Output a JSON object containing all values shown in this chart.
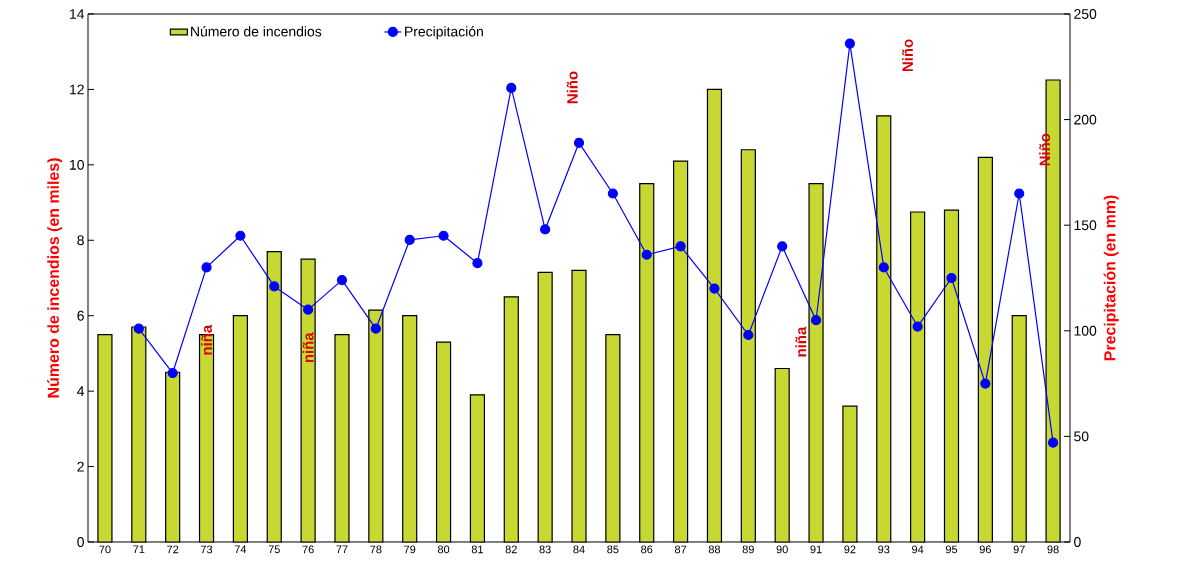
{
  "chart_data": {
    "type": "bar",
    "categories": [
      "70",
      "71",
      "72",
      "73",
      "74",
      "75",
      "76",
      "77",
      "78",
      "79",
      "80",
      "81",
      "82",
      "83",
      "84",
      "85",
      "86",
      "87",
      "88",
      "89",
      "90",
      "91",
      "92",
      "93",
      "94",
      "95",
      "96",
      "97",
      "98"
    ],
    "series": [
      {
        "name": "Número de incendios",
        "color": "#c8d832",
        "values": [
          5.5,
          5.7,
          4.5,
          5.5,
          6.0,
          7.7,
          7.5,
          5.5,
          6.15,
          6.0,
          5.3,
          3.9,
          6.5,
          7.15,
          7.2,
          5.5,
          9.5,
          10.1,
          12.0,
          10.4,
          4.6,
          9.5,
          3.6,
          11.3,
          8.75,
          8.8,
          10.2,
          6.0,
          12.25
        ]
      },
      {
        "name": "Precipitación",
        "type": "line",
        "axis": "y2",
        "color": "#0000ff",
        "marker": "circle",
        "values": [
          null,
          101,
          80,
          130,
          145,
          121,
          110,
          124,
          101,
          143,
          145,
          132,
          215,
          148,
          189,
          165,
          136,
          140,
          120,
          98,
          140,
          105,
          236,
          130,
          102,
          125,
          75,
          165,
          47
        ]
      }
    ],
    "ylabel": "Número de incendios (en miles)",
    "y2label": "Precipitación (en mm)",
    "ylim": [
      0,
      14
    ],
    "yticks": [
      0,
      2,
      4,
      6,
      8,
      10,
      12,
      14
    ],
    "y2lim": [
      0,
      250
    ],
    "y2ticks": [
      0,
      50,
      100,
      150,
      200,
      250
    ],
    "legend": "top",
    "annotations": [
      "niña",
      "niña",
      "niña",
      "Niño",
      "Niño",
      "Niño"
    ]
  }
}
